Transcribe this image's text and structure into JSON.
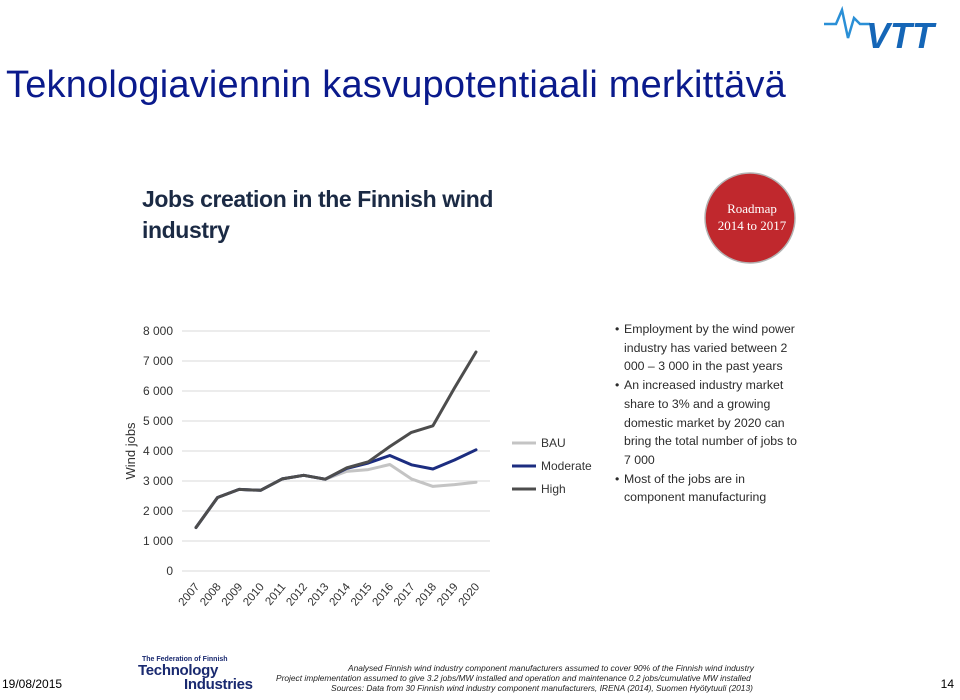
{
  "slide": {
    "title": "Teknologiaviennin kasvupotentiaali merkittävä",
    "date": "19/08/2015",
    "page_number": "14",
    "logo_text": "VTT"
  },
  "badge": {
    "line1": "Roadmap",
    "line2": "2014 to 2017",
    "color": "#c0282d"
  },
  "bullets": [
    "Employment by the wind power industry has varied between 2 000 – 3 000 in the past years",
    "An increased industry market share to 3% and a growing domestic market by 2020 can bring the total number of jobs to 7 000",
    "Most of the jobs are in component manufacturing"
  ],
  "footer": {
    "org_small": "The Federation of Finnish",
    "org_line1": "Technology",
    "org_line2": "Industries",
    "note1": "Analysed Finnish wind industry component manufacturers assumed to cover 90% of the Finnish wind industry",
    "note2": "Project implementation assumed to give 3.2 jobs/MW installed and operation and maintenance 0.2 jobs/cumulative MW installed",
    "note3": "Sources: Data from 30 Finnish wind industry component manufacturers, IRENA (2014), Suomen Hyötytuuli (2013)"
  },
  "chart_data": {
    "type": "line",
    "title": "Jobs creation in the Finnish wind industry",
    "xlabel": "",
    "ylabel": "Wind jobs",
    "categories": [
      "2007",
      "2008",
      "2009",
      "2010",
      "2011",
      "2012",
      "2013",
      "2014",
      "2015",
      "2016",
      "2017",
      "2018",
      "2019",
      "2020"
    ],
    "ylim": [
      0,
      8000
    ],
    "yticks": [
      0,
      1000,
      2000,
      3000,
      4000,
      5000,
      6000,
      7000,
      8000
    ],
    "ytick_labels": [
      "0",
      "1 000",
      "2 000",
      "3 000",
      "4 000",
      "5 000",
      "6 000",
      "7 000",
      "8 000"
    ],
    "grid": true,
    "legend_position": "right",
    "series": [
      {
        "name": "BAU",
        "color": "#c4c4c4",
        "values": [
          1450,
          2450,
          2720,
          2690,
          3070,
          3190,
          3060,
          3320,
          3380,
          3550,
          3070,
          2820,
          2880,
          2960
        ]
      },
      {
        "name": "Moderate",
        "color": "#1c2d80",
        "values": [
          1450,
          2450,
          2720,
          2690,
          3070,
          3190,
          3060,
          3420,
          3600,
          3850,
          3540,
          3400,
          3700,
          4040
        ]
      },
      {
        "name": "High",
        "color": "#4d4d4d",
        "values": [
          1450,
          2450,
          2720,
          2690,
          3070,
          3190,
          3060,
          3440,
          3640,
          4150,
          4620,
          4840,
          6100,
          7300
        ]
      }
    ]
  }
}
